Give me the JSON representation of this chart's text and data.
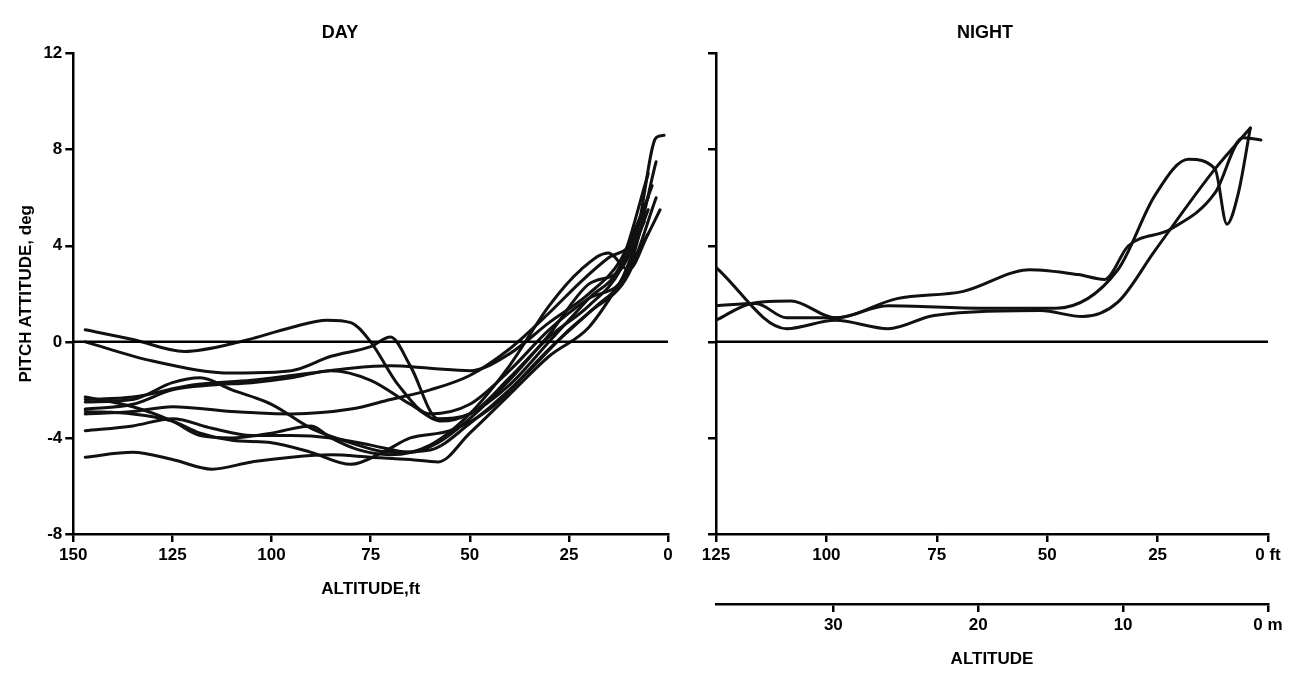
{
  "chart_data": [
    {
      "type": "line",
      "title": "DAY",
      "xlabel": "ALTITUDE,ft",
      "ylabel": "PITCH ATTITUDE, deg",
      "xlim": [
        150,
        0
      ],
      "xticks": [
        150,
        125,
        100,
        75,
        50,
        25,
        0
      ],
      "ylim": [
        -8,
        12
      ],
      "yticks": [
        -8,
        -4,
        0,
        4,
        8,
        12
      ],
      "grid": false,
      "legend": false,
      "ref_lines": [
        {
          "axis": "y",
          "value": 0
        }
      ],
      "series": [
        {
          "color": "#111111",
          "x": [
            147,
            135,
            122,
            108,
            95,
            86,
            80,
            75,
            68,
            60,
            50,
            40,
            30,
            20,
            10,
            3
          ],
          "values": [
            0.5,
            0.1,
            -0.4,
            0,
            0.6,
            0.9,
            0.8,
            0,
            -1.8,
            -3.0,
            -2.6,
            -1.2,
            0.5,
            1.8,
            3,
            7.5
          ]
        },
        {
          "color": "#111111",
          "x": [
            147,
            130,
            110,
            95,
            85,
            75,
            70,
            65,
            58,
            50,
            40,
            30,
            20,
            12,
            4
          ],
          "values": [
            0,
            -0.8,
            -1.3,
            -1.2,
            -0.6,
            -0.2,
            0.2,
            -1.0,
            -3.2,
            -3.0,
            -1.5,
            0.2,
            1.5,
            3.0,
            6.5
          ]
        },
        {
          "color": "#111111",
          "x": [
            147,
            135,
            120,
            105,
            90,
            80,
            70,
            60,
            50,
            40,
            30,
            20,
            12,
            5
          ],
          "values": [
            -2.4,
            -2.3,
            -1.8,
            -1.6,
            -1.3,
            -1.1,
            -1.0,
            -1.1,
            -1.2,
            -0.5,
            0.8,
            2.0,
            3.4,
            6
          ]
        },
        {
          "color": "#111111",
          "x": [
            147,
            135,
            125,
            118,
            110,
            100,
            90,
            80,
            70,
            60,
            50,
            40,
            30,
            20,
            10,
            3
          ],
          "values": [
            -2.5,
            -2.4,
            -1.7,
            -1.5,
            -2.0,
            -2.6,
            -3.6,
            -4.2,
            -4.6,
            -4.5,
            -3.4,
            -2.0,
            -0.3,
            1.2,
            2.8,
            6.0
          ]
        },
        {
          "color": "#111111",
          "x": [
            147,
            135,
            125,
            115,
            105,
            95,
            85,
            75,
            65,
            57,
            50,
            40,
            30,
            20,
            12,
            5
          ],
          "values": [
            -2.8,
            -2.6,
            -2.0,
            -1.8,
            -1.7,
            -1.5,
            -1.2,
            -1.6,
            -2.6,
            -3.3,
            -3.0,
            -1.8,
            0.0,
            1.8,
            3.2,
            7.0
          ]
        },
        {
          "color": "#111111",
          "x": [
            147,
            135,
            125,
            110,
            95,
            80,
            70,
            60,
            50,
            40,
            30,
            22,
            15,
            8,
            3,
            1
          ],
          "values": [
            -3.0,
            -2.9,
            -2.7,
            -2.9,
            -3.0,
            -2.8,
            -2.4,
            -2.0,
            -1.4,
            -0.3,
            1.2,
            2.5,
            3.5,
            4.5,
            8.5,
            8.6
          ]
        },
        {
          "color": "#111111",
          "x": [
            147,
            135,
            125,
            115,
            105,
            95,
            85,
            75,
            65,
            58,
            50,
            40,
            30,
            20,
            12,
            6
          ],
          "values": [
            -3.7,
            -3.5,
            -3.2,
            -3.6,
            -3.9,
            -3.9,
            -4.0,
            -4.3,
            -4.6,
            -4.2,
            -3.2,
            -1.6,
            0.3,
            2.4,
            3.0,
            5.0
          ]
        },
        {
          "color": "#111111",
          "x": [
            147,
            135,
            125,
            115,
            105,
            95,
            85,
            75,
            65,
            58,
            50,
            40,
            30,
            20,
            12,
            5
          ],
          "values": [
            -4.8,
            -4.6,
            -4.9,
            -5.3,
            -5.0,
            -4.8,
            -4.7,
            -4.8,
            -4.9,
            -5.0,
            -3.8,
            -2.2,
            -0.6,
            0.6,
            2.5,
            4.5
          ]
        },
        {
          "color": "#111111",
          "x": [
            147,
            135,
            125,
            118,
            110,
            100,
            90,
            80,
            72,
            65,
            55,
            45,
            35,
            25,
            18,
            12,
            5
          ],
          "values": [
            -2.9,
            -3.0,
            -3.3,
            -3.8,
            -4.1,
            -4.2,
            -4.6,
            -5.1,
            -4.6,
            -4.0,
            -3.7,
            -2.8,
            -1.2,
            0.5,
            1.5,
            2.5,
            5.5
          ]
        },
        {
          "color": "#111111",
          "x": [
            147,
            135,
            125,
            118,
            110,
            100,
            90,
            85,
            78,
            70,
            60,
            50,
            40,
            30,
            22,
            15,
            10,
            5,
            2
          ],
          "values": [
            -2.3,
            -2.7,
            -3.3,
            -3.9,
            -4.0,
            -3.8,
            -3.5,
            -4.0,
            -4.5,
            -4.7,
            -4.3,
            -3.0,
            -1.0,
            1.5,
            3.0,
            3.7,
            3.0,
            4.5,
            5.5
          ]
        }
      ]
    },
    {
      "type": "line",
      "title": "NIGHT",
      "x2label": "ALTITUDE",
      "xlim": [
        125,
        0
      ],
      "xticks": [
        125,
        100,
        75,
        50,
        25,
        {
          "value": 0,
          "label": "0 ft"
        }
      ],
      "x2lim": [
        38.1,
        0
      ],
      "x2ticks": [
        30,
        20,
        10,
        {
          "value": 0,
          "label": "0 m"
        }
      ],
      "ylim": [
        -8,
        12
      ],
      "yticks": [
        {
          "value": -8,
          "label": null
        },
        {
          "value": -4,
          "label": null
        },
        {
          "value": 0,
          "label": null
        },
        {
          "value": 4,
          "label": null
        },
        {
          "value": 8,
          "label": null
        },
        {
          "value": 12,
          "label": null
        }
      ],
      "tick_labels": "x",
      "grid": false,
      "legend": false,
      "ref_lines": [
        {
          "axis": "y",
          "value": 0
        }
      ],
      "series": [
        {
          "color": "#111111",
          "x": [
            125,
            109,
            98,
            86,
            75.6,
            51.5,
            42,
            34,
            25.6,
            12,
            4
          ],
          "values": [
            3.1,
            0.55,
            0.9,
            0.55,
            1.1,
            1.3,
            1.05,
            1.65,
            3.8,
            7.2,
            8.9
          ]
        },
        {
          "color": "#111111",
          "x": [
            125,
            117,
            108,
            98,
            84,
            69,
            54,
            43,
            37,
            31.6,
            22,
            12,
            5.7,
            1.6
          ],
          "values": [
            0.9,
            1.6,
            1.7,
            1.0,
            1.8,
            2.1,
            3.0,
            2.8,
            2.6,
            4.0,
            4.7,
            6.2,
            8.5,
            8.4
          ]
        },
        {
          "color": "#111111",
          "x": [
            125,
            116,
            109,
            98,
            86,
            64.5,
            48,
            34,
            25.6,
            18,
            12,
            9.3,
            6.7,
            4
          ],
          "values": [
            1.5,
            1.6,
            1.0,
            1.0,
            1.5,
            1.4,
            1.4,
            3.0,
            6.1,
            7.6,
            7.2,
            4.9,
            6.2,
            8.9
          ]
        }
      ]
    }
  ]
}
